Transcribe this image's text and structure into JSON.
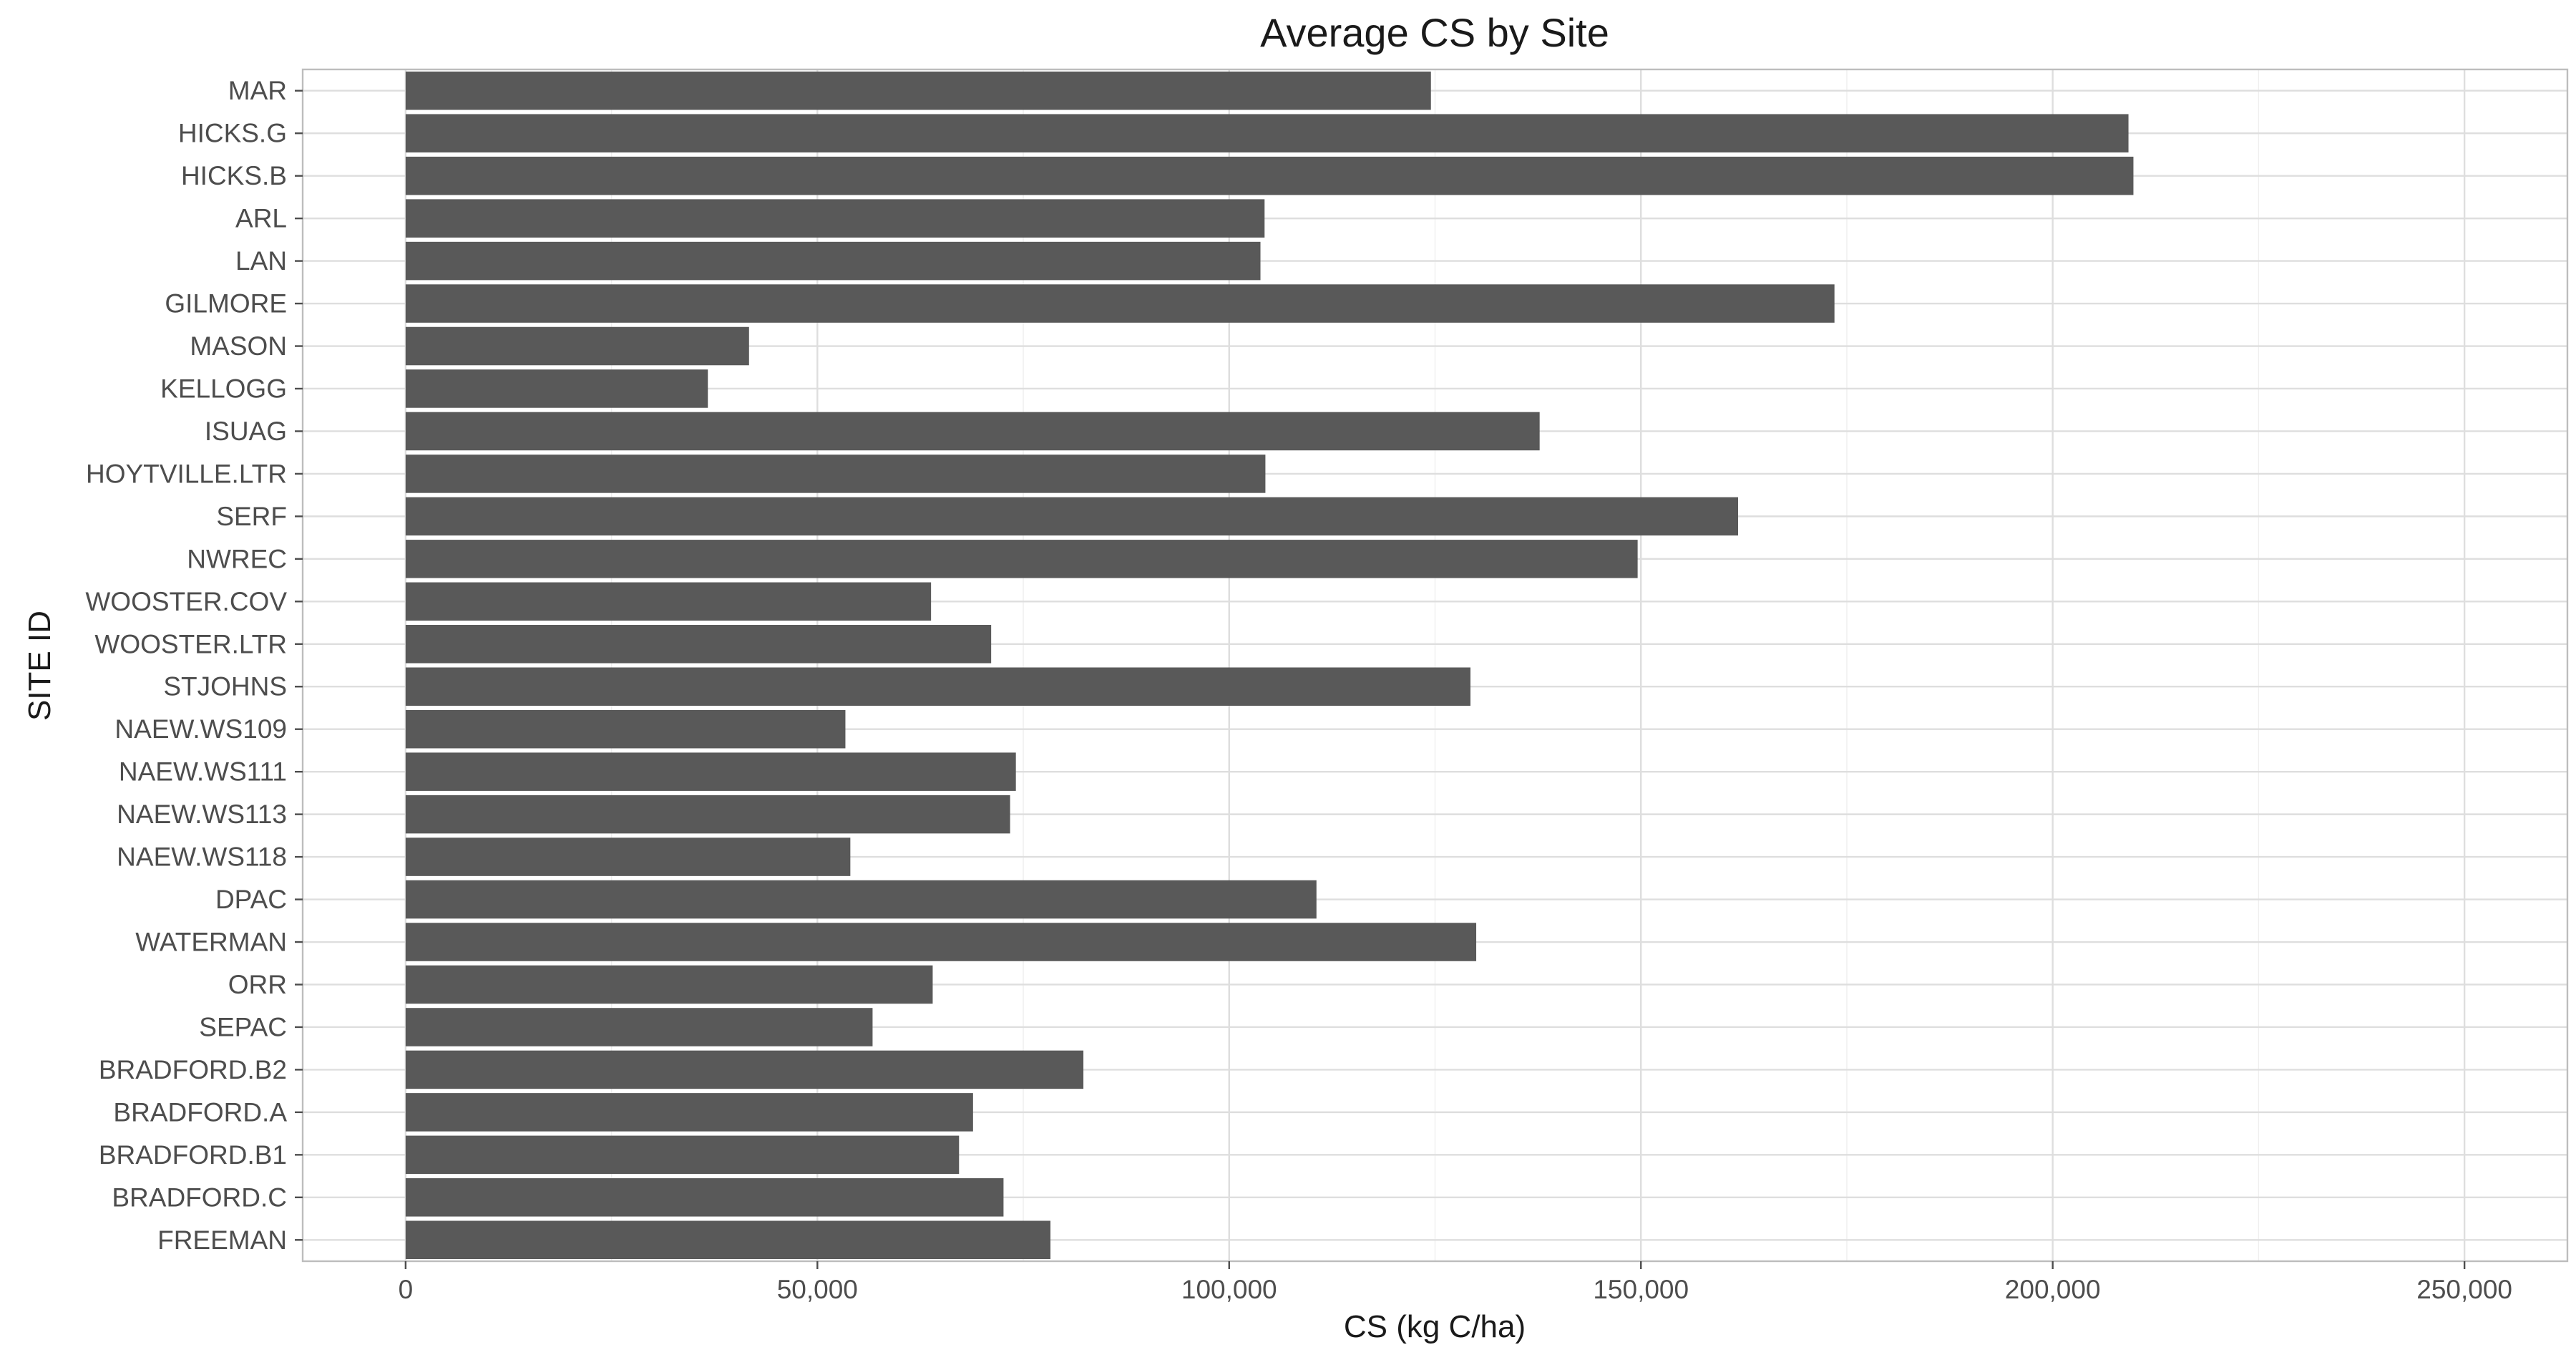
{
  "chart_data": {
    "type": "bar",
    "orientation": "horizontal",
    "title": "Average CS by Site",
    "xlabel": "CS (kg C/ha)",
    "ylabel": "SITE ID",
    "categories": [
      "MAR",
      "HICKS.G",
      "HICKS.B",
      "ARL",
      "LAN",
      "GILMORE",
      "MASON",
      "KELLOGG",
      "ISUAG",
      "HOYTVILLE.LTR",
      "SERF",
      "NWREC",
      "WOOSTER.COV",
      "WOOSTER.LTR",
      "STJOHNS",
      "NAEW.WS109",
      "NAEW.WS111",
      "NAEW.WS113",
      "NAEW.WS118",
      "DPAC",
      "WATERMAN",
      "ORR",
      "SEPAC",
      "BRADFORD.B2",
      "BRADFORD.A",
      "BRADFORD.B1",
      "BRADFORD.C",
      "FREEMAN"
    ],
    "values": [
      124500,
      209200,
      209800,
      104300,
      103800,
      173500,
      41700,
      36700,
      137700,
      104400,
      161800,
      149600,
      63800,
      71100,
      129300,
      53400,
      74100,
      73400,
      54000,
      110600,
      130000,
      64000,
      56700,
      82300,
      68900,
      67200,
      72600,
      78300
    ],
    "xlim": [
      -12500,
      262500
    ],
    "xticks": [
      0,
      50000,
      100000,
      150000,
      200000,
      250000
    ],
    "xtick_labels": [
      "0",
      "50,000",
      "100,000",
      "150,000",
      "200,000",
      "250,000"
    ],
    "bar_color": "#595959",
    "grid": true,
    "legend": "none"
  }
}
